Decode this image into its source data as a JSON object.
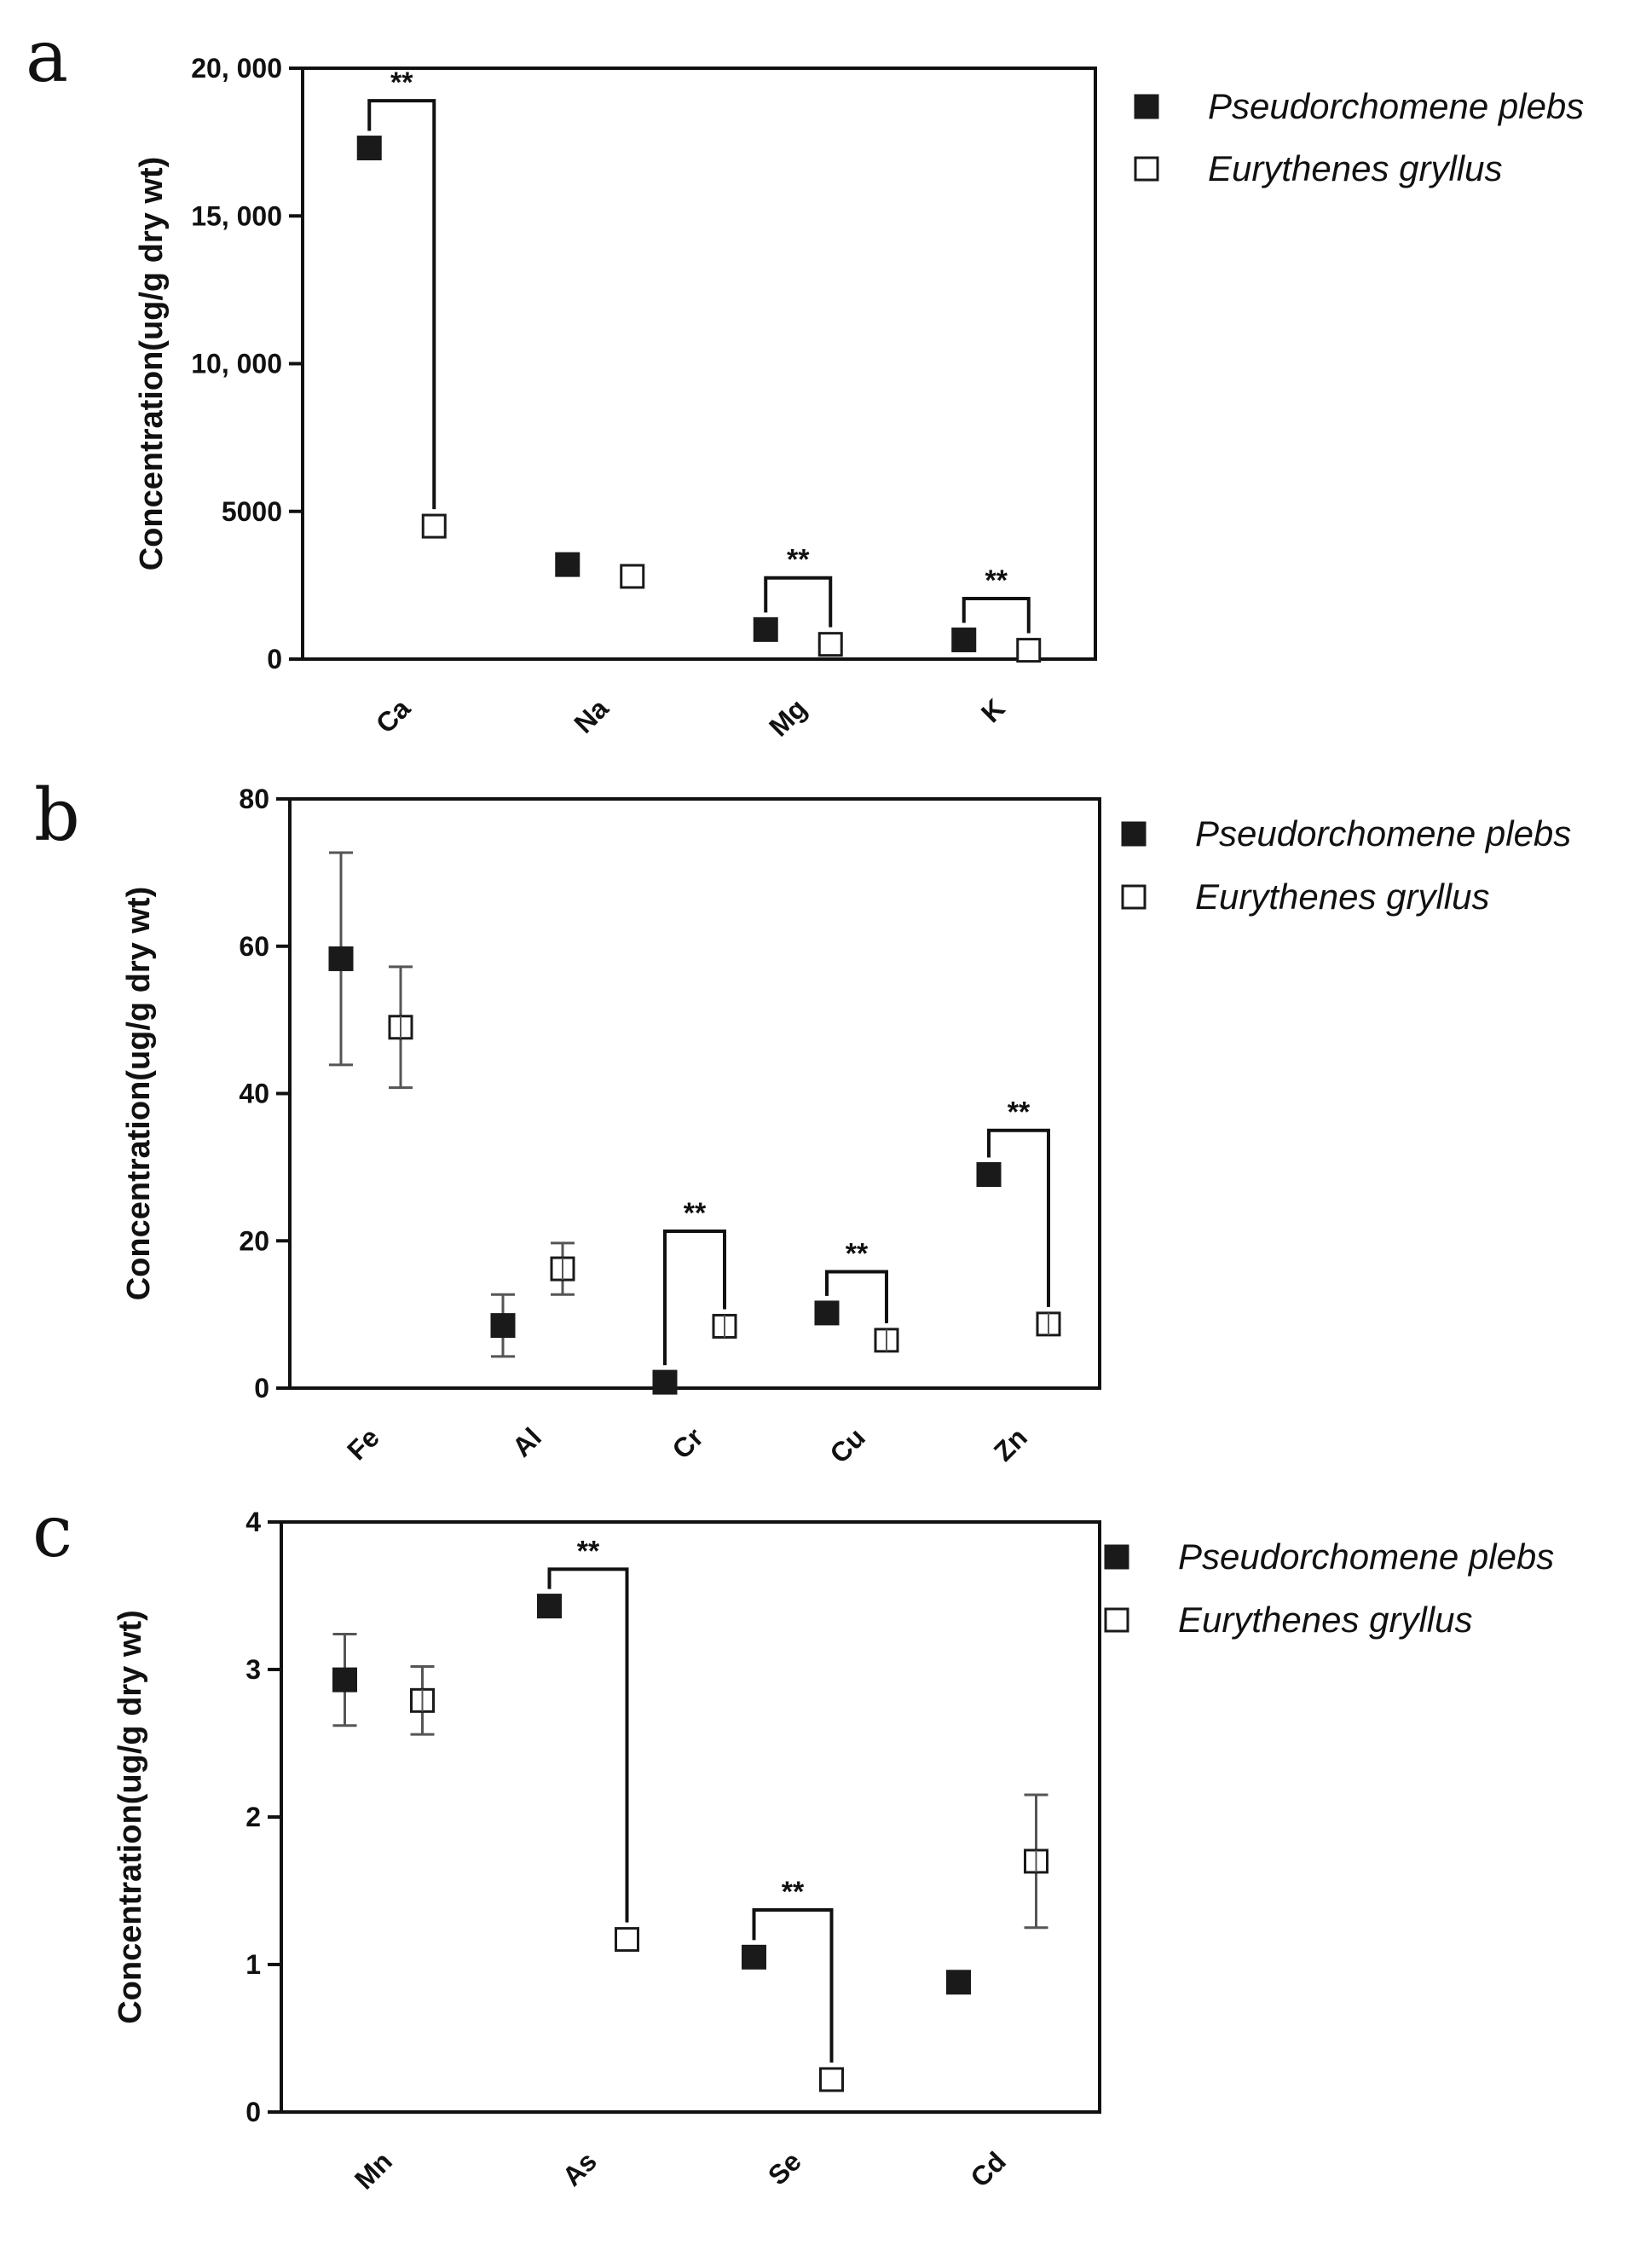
{
  "chart_data": [
    {
      "type": "scatter",
      "panel": "a",
      "ylabel": "Concentration(ug/g dry wt)",
      "ylim": [
        0,
        20000
      ],
      "yticks": [
        0,
        5000,
        10000,
        15000,
        20000
      ],
      "ytick_labels": [
        "0",
        "5000",
        "10, 000",
        "15, 000",
        "20, 000"
      ],
      "categories": [
        "Ca",
        "Na",
        "Mg",
        "K"
      ],
      "legend_position": "right",
      "series": [
        {
          "name": "Pseudorchomene plebs",
          "marker": "filled-square",
          "values": [
            17300,
            3200,
            1000,
            650
          ],
          "errors": [
            0,
            0,
            0,
            0
          ]
        },
        {
          "name": "Eurythenes gryllus",
          "marker": "open-square",
          "values": [
            4500,
            2800,
            500,
            300
          ],
          "errors": [
            0,
            0,
            0,
            0
          ]
        }
      ],
      "significance": [
        {
          "category": "Ca",
          "label": "**",
          "top": 18900
        },
        {
          "category": "Mg",
          "label": "**",
          "top": 2750
        },
        {
          "category": "K",
          "label": "**",
          "top": 2050
        }
      ]
    },
    {
      "type": "scatter",
      "panel": "b",
      "ylabel": "Concentration(ug/g dry wt)",
      "ylim": [
        0,
        80
      ],
      "yticks": [
        0,
        20,
        40,
        60,
        80
      ],
      "ytick_labels": [
        "0",
        "20",
        "40",
        "60",
        "80"
      ],
      "categories": [
        "Fe",
        "Al",
        "Cr",
        "Cu",
        "Zn"
      ],
      "legend_position": "right",
      "series": [
        {
          "name": "Pseudorchomene plebs",
          "marker": "filled-square",
          "values": [
            58.3,
            8.5,
            0.8,
            10.2,
            29.0
          ],
          "errors": [
            14.4,
            4.2,
            0,
            0,
            0
          ]
        },
        {
          "name": "Eurythenes gryllus",
          "marker": "open-square",
          "values": [
            49.0,
            16.2,
            8.4,
            6.5,
            8.7
          ],
          "errors": [
            8.2,
            3.5,
            1.2,
            0.9,
            0.6
          ]
        }
      ],
      "significance": [
        {
          "category": "Cr",
          "label": "**",
          "top": 21.3
        },
        {
          "category": "Cu",
          "label": "**",
          "top": 15.8
        },
        {
          "category": "Zn",
          "label": "**",
          "top": 35.0
        }
      ]
    },
    {
      "type": "scatter",
      "panel": "c",
      "ylabel": "Concentration(ug/g dry wt)",
      "ylim": [
        0,
        4
      ],
      "yticks": [
        0,
        1,
        2,
        3,
        4
      ],
      "ytick_labels": [
        "0",
        "1",
        "2",
        "3",
        "4"
      ],
      "categories": [
        "Mn",
        "As",
        "Se",
        "Cd"
      ],
      "legend_position": "right",
      "series": [
        {
          "name": "Pseudorchomene plebs",
          "marker": "filled-square",
          "values": [
            2.93,
            3.43,
            1.05,
            0.88
          ],
          "errors": [
            0.31,
            0,
            0,
            0
          ]
        },
        {
          "name": "Eurythenes gryllus",
          "marker": "open-square",
          "values": [
            2.79,
            1.17,
            0.22,
            1.7
          ],
          "errors": [
            0.23,
            0,
            0,
            0.45
          ]
        }
      ],
      "significance": [
        {
          "category": "As",
          "label": "**",
          "top": 3.68
        },
        {
          "category": "Se",
          "label": "**",
          "top": 1.37
        }
      ]
    }
  ]
}
